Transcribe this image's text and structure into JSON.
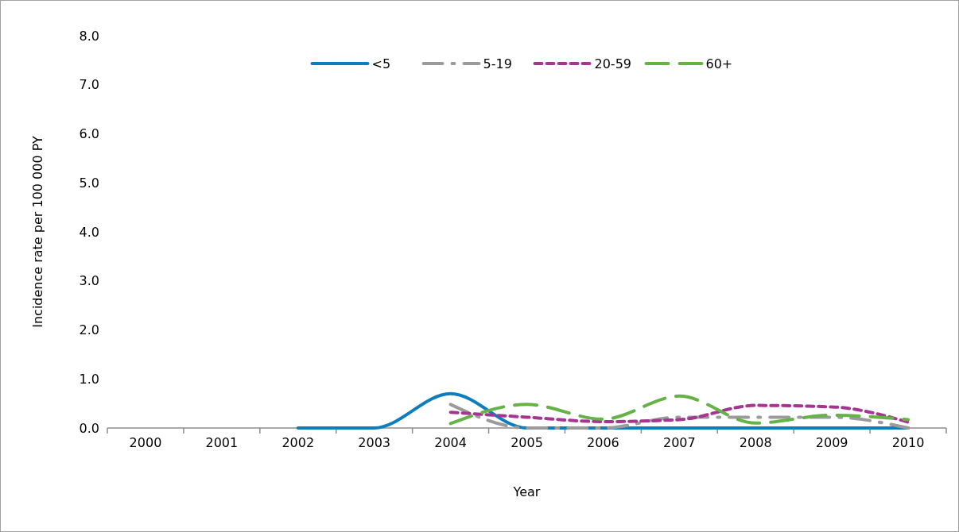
{
  "chart_data": {
    "type": "line",
    "xlabel": "Year",
    "ylabel": "Incidence rate per 100 000 PY",
    "categories": [
      "2000",
      "2001",
      "2002",
      "2003",
      "2004",
      "2005",
      "2006",
      "2007",
      "2008",
      "2009",
      "2010"
    ],
    "ylim": [
      0,
      8
    ],
    "yticks": [
      {
        "value": 0,
        "label": "0.0"
      },
      {
        "value": 1,
        "label": "1.0"
      },
      {
        "value": 2,
        "label": "2.0"
      },
      {
        "value": 3,
        "label": "3.0"
      },
      {
        "value": 4,
        "label": "4.0"
      },
      {
        "value": 5,
        "label": "5.0"
      },
      {
        "value": 6,
        "label": "6.0"
      },
      {
        "value": 7,
        "label": "7.0"
      },
      {
        "value": 8,
        "label": "8.0"
      }
    ],
    "legend": "top",
    "grid": false,
    "series": [
      {
        "name": "<5",
        "color": "#0e7dbd",
        "line_style": "solid",
        "values": [
          null,
          null,
          0,
          0,
          0.7,
          0,
          0,
          0,
          0,
          0,
          0
        ]
      },
      {
        "name": "5-19",
        "color": "#9b9b9b",
        "line_style": "dashdot",
        "values": [
          null,
          null,
          null,
          null,
          0.48,
          0,
          0,
          0.22,
          0.22,
          0.22,
          0
        ]
      },
      {
        "name": "20-59",
        "color": "#a63592",
        "line_style": "dotted",
        "values": [
          null,
          null,
          null,
          null,
          0.32,
          0.22,
          0.13,
          0.17,
          0.46,
          0.43,
          0.12
        ]
      },
      {
        "name": "60+",
        "color": "#65b246",
        "line_style": "dashed",
        "values": [
          null,
          null,
          null,
          null,
          0.09,
          0.48,
          0.18,
          0.65,
          0.1,
          0.26,
          0.17
        ]
      }
    ]
  }
}
